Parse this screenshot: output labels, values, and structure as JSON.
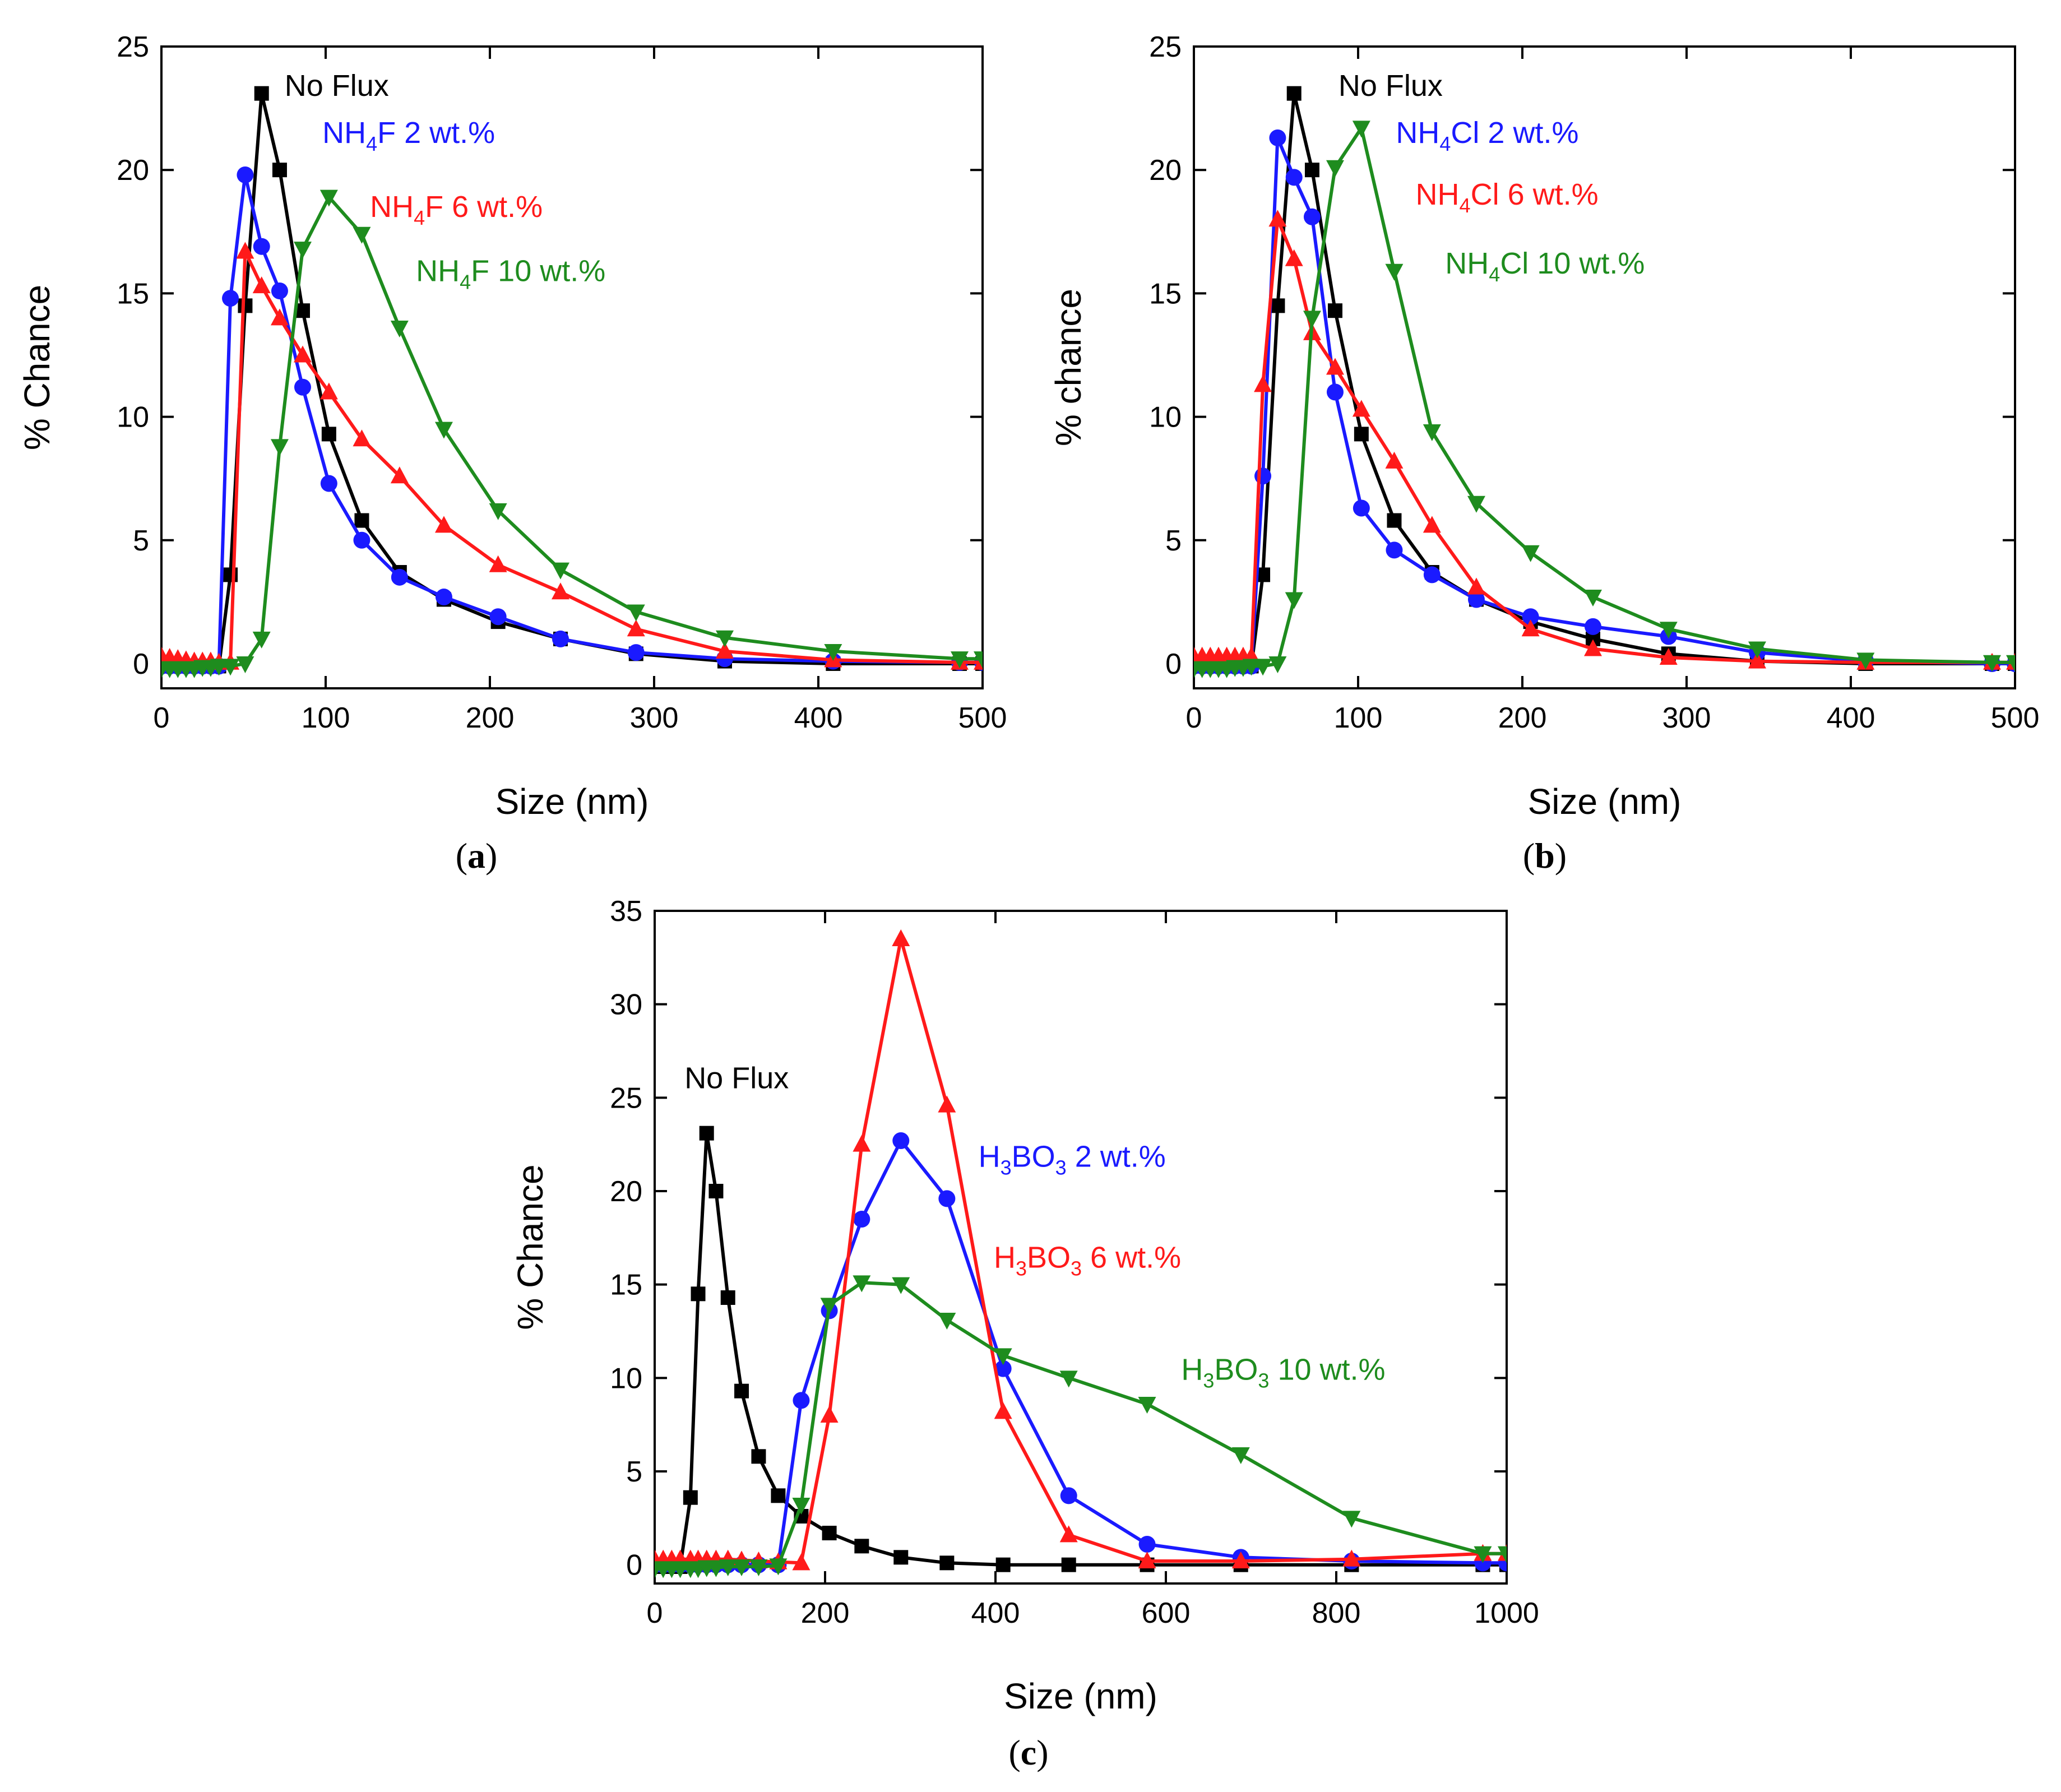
{
  "colors": {
    "no_flux": "#000000",
    "flux_2": "#1a1aff",
    "flux_6": "#ff1a1a",
    "flux_10": "#1e8c1e"
  },
  "chart_data": [
    {
      "id": "a",
      "type": "line",
      "panel_label": "a",
      "xlabel": "Size (nm)",
      "ylabel": "% Chance",
      "xlim": [
        0,
        500
      ],
      "ylim": [
        -1,
        25
      ],
      "xticks": [
        0,
        100,
        200,
        300,
        400,
        500
      ],
      "yticks": [
        0,
        5,
        10,
        15,
        20,
        25
      ],
      "series": [
        {
          "key": "nf",
          "name": "No Flux",
          "color": "#000000",
          "marker": "square",
          "x": [
            0,
            5,
            10,
            15,
            20,
            25,
            30,
            35,
            42,
            51,
            61,
            72,
            86,
            102,
            122,
            145,
            172,
            205,
            243,
            289,
            343,
            409,
            486,
            500
          ],
          "y": [
            -0.1,
            -0.1,
            -0.1,
            -0.1,
            -0.1,
            -0.1,
            -0.1,
            -0.1,
            3.6,
            14.5,
            23.1,
            20.0,
            14.3,
            9.3,
            5.8,
            3.7,
            2.6,
            1.7,
            1.0,
            0.4,
            0.1,
            0.0,
            0.0,
            0.0
          ]
        },
        {
          "key": "f2",
          "name": "NH4F 2 wt.%",
          "color": "#1a1aff",
          "marker": "circle",
          "x": [
            0,
            5,
            10,
            15,
            20,
            25,
            30,
            35,
            42,
            51,
            61,
            72,
            86,
            102,
            122,
            145,
            172,
            205,
            243,
            289,
            343,
            409,
            486,
            500
          ],
          "y": [
            -0.1,
            -0.1,
            -0.1,
            -0.1,
            -0.1,
            -0.1,
            -0.1,
            -0.1,
            14.8,
            19.8,
            16.9,
            15.1,
            11.2,
            7.3,
            5.0,
            3.5,
            2.7,
            1.9,
            1.0,
            0.45,
            0.2,
            0.1,
            0.05,
            0.05
          ]
        },
        {
          "key": "f6",
          "name": "NH4F 6 wt.%",
          "color": "#ff1a1a",
          "marker": "triangle-up",
          "x": [
            0,
            5,
            10,
            15,
            20,
            25,
            30,
            35,
            42,
            51,
            61,
            72,
            86,
            102,
            122,
            145,
            172,
            205,
            243,
            289,
            343,
            409,
            486,
            500
          ],
          "y": [
            0.3,
            0.25,
            0.2,
            0.15,
            0.1,
            0.1,
            0.1,
            0.05,
            0.05,
            16.7,
            15.3,
            14.0,
            12.5,
            11.0,
            9.1,
            7.6,
            5.6,
            4.0,
            2.9,
            1.4,
            0.5,
            0.15,
            0.05,
            0.05
          ]
        },
        {
          "key": "f10",
          "name": "NH4F 10 wt.%",
          "color": "#1e8c1e",
          "marker": "triangle-down",
          "x": [
            0,
            5,
            10,
            15,
            20,
            25,
            30,
            35,
            42,
            51,
            61,
            72,
            86,
            102,
            122,
            145,
            172,
            205,
            243,
            289,
            343,
            409,
            486,
            500
          ],
          "y": [
            -0.2,
            -0.2,
            -0.2,
            -0.2,
            -0.2,
            -0.15,
            -0.15,
            -0.1,
            -0.1,
            0.0,
            1.0,
            8.8,
            16.8,
            18.9,
            17.4,
            13.6,
            9.5,
            6.2,
            3.8,
            2.1,
            1.05,
            0.5,
            0.2,
            0.2
          ]
        }
      ],
      "annotations": [
        {
          "key": "nf",
          "base": "No Flux",
          "sub": "",
          "tail": "",
          "color": "#000000"
        },
        {
          "key": "f2",
          "base": "NH",
          "sub": "4",
          "tail": "F 2 wt.%",
          "color": "#1a1aff"
        },
        {
          "key": "f6",
          "base": "NH",
          "sub": "4",
          "tail": "F 6 wt.%",
          "color": "#ff1a1a"
        },
        {
          "key": "f10",
          "base": "NH",
          "sub": "4",
          "tail": "F 10 wt.%",
          "color": "#1e8c1e"
        }
      ]
    },
    {
      "id": "b",
      "type": "line",
      "panel_label": "b",
      "xlabel": "Size (nm)",
      "ylabel": "% chance",
      "xlim": [
        0,
        500
      ],
      "ylim": [
        -1,
        25
      ],
      "xticks": [
        0,
        100,
        200,
        300,
        400,
        500
      ],
      "yticks": [
        0,
        5,
        10,
        15,
        20,
        25
      ],
      "series": [
        {
          "key": "nf",
          "name": "No Flux",
          "color": "#000000",
          "marker": "square",
          "x": [
            0,
            5,
            10,
            15,
            20,
            25,
            30,
            35,
            42,
            51,
            61,
            72,
            86,
            102,
            122,
            145,
            172,
            205,
            243,
            289,
            343,
            409,
            486,
            500
          ],
          "y": [
            -0.1,
            -0.1,
            -0.1,
            -0.1,
            -0.1,
            -0.1,
            -0.1,
            -0.1,
            3.6,
            14.5,
            23.1,
            20.0,
            14.3,
            9.3,
            5.8,
            3.7,
            2.6,
            1.7,
            1.0,
            0.4,
            0.1,
            0.0,
            0.0,
            0.0
          ]
        },
        {
          "key": "c2",
          "name": "NH4Cl 2 wt.%",
          "color": "#1a1aff",
          "marker": "circle",
          "x": [
            0,
            5,
            10,
            15,
            20,
            25,
            30,
            35,
            42,
            51,
            61,
            72,
            86,
            102,
            122,
            145,
            172,
            205,
            243,
            289,
            343,
            409,
            486,
            500
          ],
          "y": [
            -0.1,
            -0.1,
            -0.1,
            -0.1,
            -0.1,
            -0.1,
            -0.1,
            -0.1,
            7.6,
            21.3,
            19.7,
            18.1,
            11.0,
            6.3,
            4.6,
            3.6,
            2.6,
            1.9,
            1.5,
            1.1,
            0.45,
            0.1,
            0.0,
            0.0
          ]
        },
        {
          "key": "c6",
          "name": "NH4Cl 6 wt.%",
          "color": "#ff1a1a",
          "marker": "triangle-up",
          "x": [
            0,
            5,
            10,
            15,
            20,
            25,
            30,
            35,
            42,
            51,
            61,
            72,
            86,
            102,
            122,
            145,
            172,
            205,
            243,
            289,
            343,
            409,
            486,
            500
          ],
          "y": [
            0.3,
            0.3,
            0.3,
            0.3,
            0.3,
            0.3,
            0.3,
            0.3,
            11.3,
            18.0,
            16.4,
            13.4,
            12.0,
            10.3,
            8.2,
            5.6,
            3.1,
            1.4,
            0.6,
            0.25,
            0.1,
            0.05,
            0.05,
            0.05
          ]
        },
        {
          "key": "c10",
          "name": "NH4Cl 10 wt.%",
          "color": "#1e8c1e",
          "marker": "triangle-down",
          "x": [
            0,
            5,
            10,
            15,
            20,
            25,
            30,
            35,
            42,
            51,
            61,
            72,
            86,
            102,
            122,
            145,
            172,
            205,
            243,
            289,
            343,
            409,
            486,
            500
          ],
          "y": [
            -0.2,
            -0.2,
            -0.2,
            -0.2,
            -0.2,
            -0.15,
            -0.15,
            -0.1,
            -0.1,
            0.0,
            2.6,
            14.0,
            20.1,
            21.7,
            15.9,
            9.4,
            6.5,
            4.5,
            2.7,
            1.4,
            0.6,
            0.15,
            0.05,
            0.05
          ]
        }
      ],
      "annotations": [
        {
          "key": "nf",
          "base": "No Flux",
          "sub": "",
          "tail": "",
          "color": "#000000"
        },
        {
          "key": "c2",
          "base": "NH",
          "sub": "4",
          "tail": "Cl 2 wt.%",
          "color": "#1a1aff"
        },
        {
          "key": "c6",
          "base": "NH",
          "sub": "4",
          "tail": "Cl 6 wt.%",
          "color": "#ff1a1a"
        },
        {
          "key": "c10",
          "base": "NH",
          "sub": "4",
          "tail": "Cl 10 wt.%",
          "color": "#1e8c1e"
        }
      ]
    },
    {
      "id": "c",
      "type": "line",
      "panel_label": "c",
      "xlabel": "Size (nm)",
      "ylabel": "% Chance",
      "xlim": [
        0,
        1000
      ],
      "ylim": [
        -1,
        35
      ],
      "xticks": [
        0,
        200,
        400,
        600,
        800,
        1000
      ],
      "yticks": [
        0,
        5,
        10,
        15,
        20,
        25,
        30,
        35
      ],
      "series": [
        {
          "key": "nf",
          "name": "No Flux",
          "color": "#000000",
          "marker": "square",
          "x": [
            0,
            10,
            20,
            30,
            42,
            51,
            61,
            72,
            86,
            102,
            122,
            145,
            172,
            205,
            243,
            289,
            343,
            409,
            486,
            578,
            688,
            818,
            972,
            1000
          ],
          "y": [
            -0.1,
            -0.1,
            -0.1,
            -0.1,
            3.6,
            14.5,
            23.1,
            20.0,
            14.3,
            9.3,
            5.8,
            3.7,
            2.6,
            1.7,
            1.0,
            0.4,
            0.1,
            0.0,
            0.0,
            0.0,
            0.0,
            0.0,
            0.0,
            0.0
          ]
        },
        {
          "key": "h2",
          "name": "H3BO3 2 wt.%",
          "color": "#1a1aff",
          "marker": "circle",
          "x": [
            0,
            10,
            20,
            30,
            42,
            51,
            61,
            72,
            86,
            102,
            122,
            145,
            172,
            205,
            243,
            289,
            343,
            409,
            486,
            578,
            688,
            818,
            972,
            1000
          ],
          "y": [
            0.0,
            0.0,
            0.0,
            0.0,
            0.0,
            0.0,
            0.0,
            0.0,
            0.0,
            0.0,
            0.0,
            0.0,
            8.8,
            13.6,
            18.5,
            22.7,
            19.6,
            10.5,
            3.7,
            1.1,
            0.4,
            0.2,
            0.1,
            0.1
          ]
        },
        {
          "key": "h6",
          "name": "H3BO3 6 wt.%",
          "color": "#ff1a1a",
          "marker": "triangle-up",
          "x": [
            0,
            10,
            20,
            30,
            42,
            51,
            61,
            72,
            86,
            102,
            122,
            145,
            172,
            205,
            243,
            289,
            343,
            409,
            486,
            578,
            688,
            818,
            972,
            1000
          ],
          "y": [
            0.3,
            0.3,
            0.3,
            0.3,
            0.3,
            0.3,
            0.3,
            0.3,
            0.3,
            0.25,
            0.2,
            0.15,
            0.1,
            8.0,
            22.5,
            33.5,
            24.6,
            8.2,
            1.6,
            0.2,
            0.2,
            0.3,
            0.6,
            0.6
          ]
        },
        {
          "key": "h10",
          "name": "H3BO3 10 wt.%",
          "color": "#1e8c1e",
          "marker": "triangle-down",
          "x": [
            0,
            10,
            20,
            30,
            42,
            51,
            61,
            72,
            86,
            102,
            122,
            145,
            172,
            205,
            243,
            289,
            343,
            409,
            486,
            578,
            688,
            818,
            972,
            1000
          ],
          "y": [
            -0.2,
            -0.2,
            -0.2,
            -0.2,
            -0.2,
            -0.2,
            -0.15,
            -0.15,
            -0.1,
            -0.1,
            -0.1,
            -0.05,
            3.2,
            13.9,
            15.1,
            15.0,
            13.1,
            11.2,
            10.0,
            8.6,
            5.9,
            2.5,
            0.6,
            0.6
          ]
        }
      ],
      "annotations": [
        {
          "key": "nf",
          "base": "No Flux",
          "sub": "",
          "tail": "",
          "color": "#000000"
        },
        {
          "key": "h2",
          "base": "H",
          "sub": "3",
          "tail": "BO",
          "sub2": "3",
          "tail2": " 2 wt.%",
          "color": "#1a1aff"
        },
        {
          "key": "h6",
          "base": "H",
          "sub": "3",
          "tail": "BO",
          "sub2": "3",
          "tail2": " 6 wt.%",
          "color": "#ff1a1a"
        },
        {
          "key": "h10",
          "base": "H",
          "sub": "3",
          "tail": "BO",
          "sub2": "3",
          "tail2": " 10 wt.%",
          "color": "#1e8c1e"
        }
      ]
    }
  ]
}
